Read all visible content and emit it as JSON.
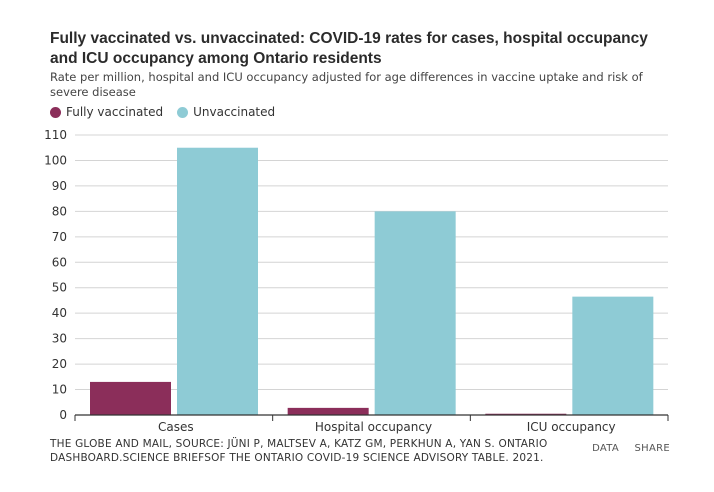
{
  "title": "Fully vaccinated vs. unvaccinated: COVID-19 rates for cases, hospital occupancy and ICU occupancy among Ontario residents",
  "subtitle": "Rate per million, hospital and ICU occupancy adjusted for age differences in vaccine uptake and risk of severe disease",
  "legend": [
    {
      "label": "Fully vaccinated",
      "color": "#8b2e5a"
    },
    {
      "label": "Unvaccinated",
      "color": "#8ecbd5"
    }
  ],
  "chart_data": {
    "type": "bar",
    "categories": [
      "Cases",
      "Hospital occupancy",
      "ICU occupancy"
    ],
    "series": [
      {
        "name": "Fully vaccinated",
        "values": [
          13,
          2.8,
          0.5
        ],
        "color": "#8b2e5a"
      },
      {
        "name": "Unvaccinated",
        "values": [
          105,
          80,
          46.5
        ],
        "color": "#8ecbd5"
      }
    ],
    "yticks": [
      "0",
      "10",
      "20",
      "30",
      "40",
      "50",
      "60",
      "70",
      "80",
      "90",
      "100",
      "110"
    ],
    "ylim": [
      0,
      110
    ],
    "grid": true,
    "legend_position": "top-left"
  },
  "source": "THE GLOBE AND MAIL, SOURCE: JÜNI P, MALTSEV A, KATZ GM, PERKHUN A, YAN S. ONTARIO DASHBOARD.SCIENCE BRIEFSOF THE ONTARIO COVID-19 SCIENCE ADVISORY TABLE. 2021.",
  "actions": {
    "data_label": "DATA",
    "share_label": "SHARE"
  }
}
